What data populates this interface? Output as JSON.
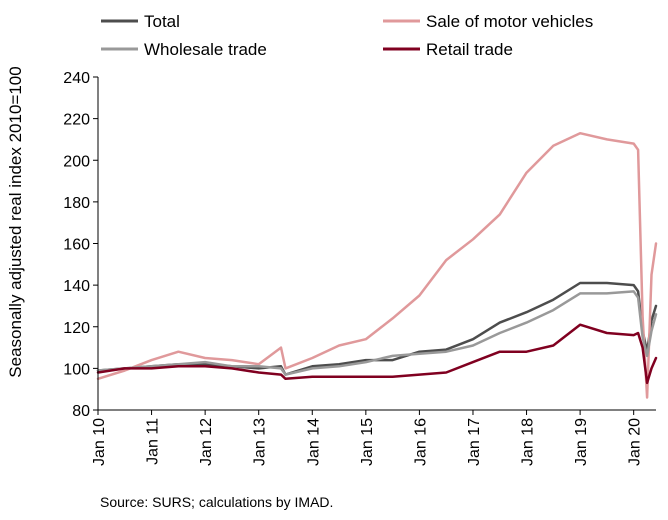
{
  "chart_data": {
    "type": "line",
    "title": "",
    "xlabel": "",
    "ylabel": "Seasonally adjusted real index 2010=100",
    "ylim": [
      80,
      240
    ],
    "yticks": [
      80,
      100,
      120,
      140,
      160,
      180,
      200,
      220,
      240
    ],
    "xlim": [
      "2010-01",
      "2020-06"
    ],
    "xtick_labels": [
      "Jan 10",
      "Jan 11",
      "Jan 12",
      "Jan 13",
      "Jan 14",
      "Jan 15",
      "Jan 16",
      "Jan 17",
      "Jan 18",
      "Jan 19",
      "Jan 20"
    ],
    "grid": false,
    "legend_position": "top",
    "source": "Source: SURS; calculations by IMAD.",
    "anchor_months": [
      "2010-01",
      "2010-07",
      "2011-01",
      "2011-07",
      "2012-01",
      "2012-07",
      "2013-01",
      "2013-06",
      "2013-07",
      "2014-01",
      "2014-07",
      "2015-01",
      "2015-07",
      "2016-01",
      "2016-07",
      "2017-01",
      "2017-07",
      "2018-01",
      "2018-07",
      "2019-01",
      "2019-07",
      "2020-01",
      "2020-02",
      "2020-03",
      "2020-04",
      "2020-05",
      "2020-06"
    ],
    "series": [
      {
        "name": "Total",
        "color": "#4d4d4d",
        "width": 2.5,
        "values": [
          99,
          100,
          101,
          102,
          102,
          101,
          100,
          101,
          97,
          101,
          102,
          104,
          104,
          108,
          109,
          114,
          122,
          127,
          133,
          141,
          141,
          140,
          137,
          118,
          108,
          123,
          130
        ]
      },
      {
        "name": "Sale of motor vehicles",
        "color": "#e0999b",
        "width": 2.5,
        "values": [
          95,
          99,
          104,
          108,
          105,
          104,
          102,
          110,
          100,
          105,
          111,
          114,
          124,
          135,
          152,
          162,
          174,
          194,
          207,
          213,
          210,
          208,
          205,
          125,
          86,
          145,
          160
        ]
      },
      {
        "name": "Wholesale trade",
        "color": "#999999",
        "width": 2.5,
        "values": [
          99,
          100,
          101,
          102,
          103,
          101,
          101,
          100,
          97,
          100,
          101,
          103,
          106,
          107,
          108,
          111,
          117,
          122,
          128,
          136,
          136,
          137,
          134,
          115,
          106,
          118,
          126
        ]
      },
      {
        "name": "Retail trade",
        "color": "#800020",
        "width": 2.5,
        "values": [
          98,
          100,
          100,
          101,
          101,
          100,
          98,
          97,
          95,
          96,
          96,
          96,
          96,
          97,
          98,
          103,
          108,
          108,
          111,
          121,
          117,
          116,
          117,
          110,
          93,
          100,
          105
        ]
      }
    ]
  }
}
